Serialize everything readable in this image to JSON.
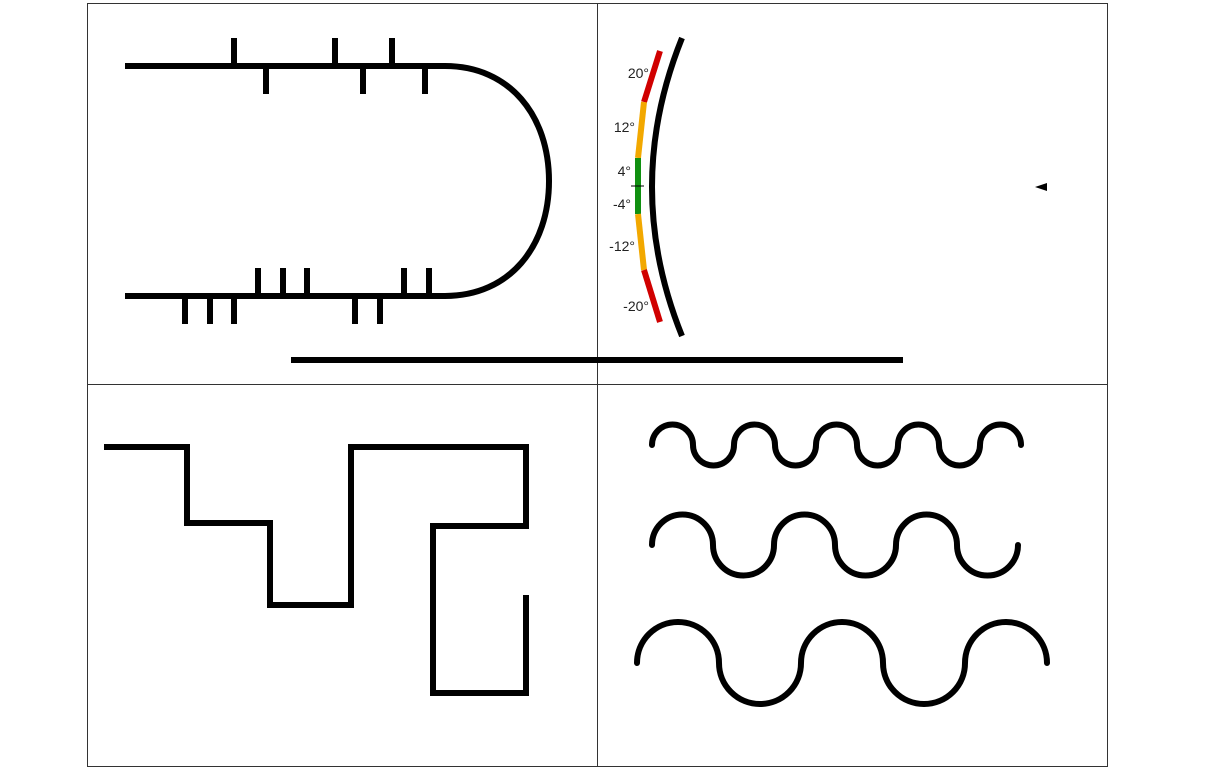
{
  "colors": {
    "stroke": "#000000",
    "frame": "#333333",
    "background": "#ffffff",
    "zone_low": "#109010",
    "zone_mid": "#f2a800",
    "zone_high": "#d00000"
  },
  "panels": [
    {
      "id": "track-panel",
      "content": "u-shaped track with cross-ticks"
    },
    {
      "id": "curvature-panel",
      "content": "curved rail with angle scale"
    },
    {
      "id": "step-path-panel",
      "content": "rectilinear stepped path"
    },
    {
      "id": "waves-panel",
      "content": "three wave lines of increasing wavelength"
    }
  ],
  "angle_scale": {
    "labels": [
      "20°",
      "12°",
      "4°",
      "-4°",
      "-12°",
      "-20°"
    ],
    "zones": [
      {
        "from": "20°",
        "to": "12°",
        "color": "zone_high"
      },
      {
        "from": "12°",
        "to": "4°",
        "color": "zone_mid"
      },
      {
        "from": "4°",
        "to": "-4°",
        "color": "zone_low"
      },
      {
        "from": "-4°",
        "to": "-12°",
        "color": "zone_mid"
      },
      {
        "from": "-12°",
        "to": "-20°",
        "color": "zone_high"
      }
    ]
  },
  "waves": [
    {
      "name": "short-wave",
      "arches": 5
    },
    {
      "name": "medium-wave",
      "arches": 3
    },
    {
      "name": "long-wave",
      "arches": 2
    }
  ],
  "marker": {
    "icon": "arrow-left-icon"
  }
}
